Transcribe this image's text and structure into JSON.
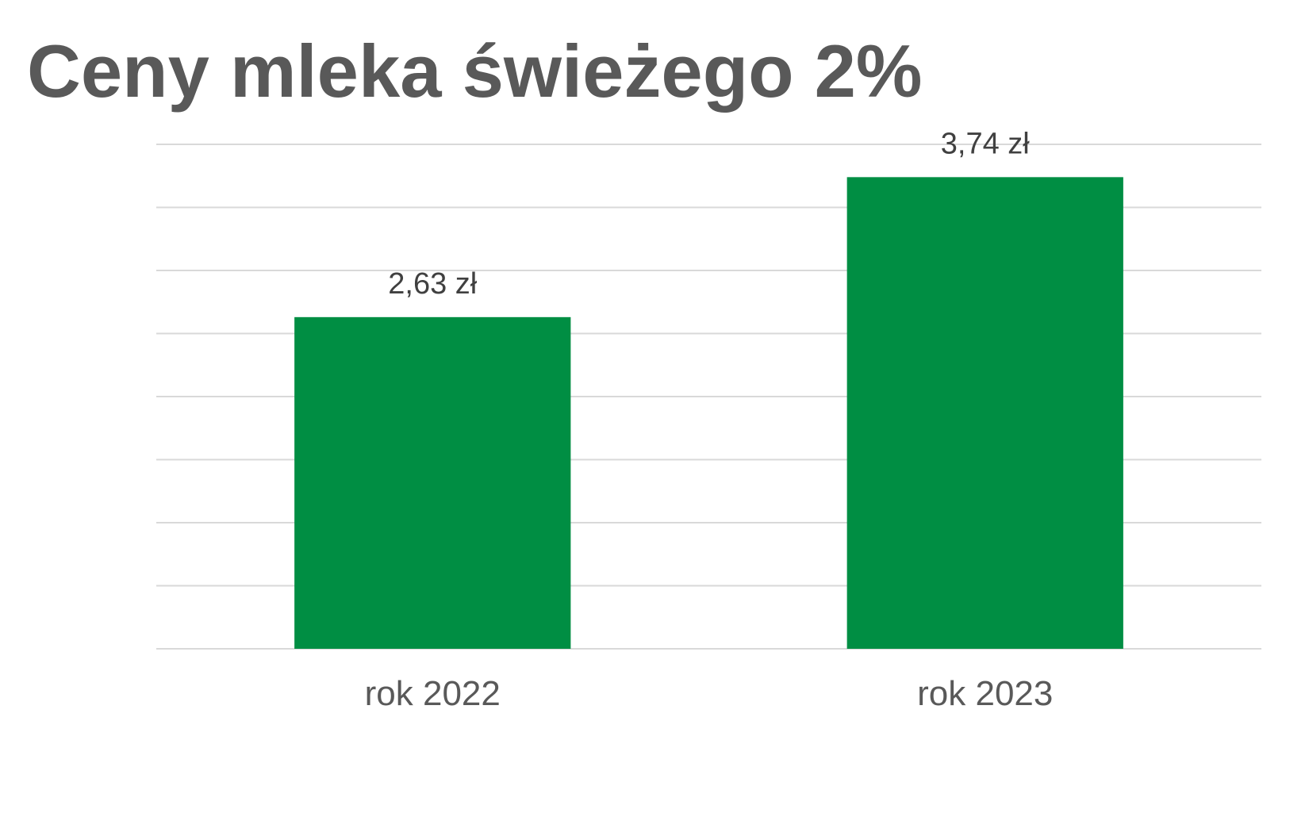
{
  "chart_data": {
    "type": "bar",
    "title": "Ceny mleka świeżego 2%",
    "categories": [
      "rok 2022",
      "rok 2023"
    ],
    "values": [
      2.63,
      3.74
    ],
    "data_labels": [
      "2,63 zł",
      "3,74 zł"
    ],
    "xlabel": "",
    "ylabel": "",
    "ylim": [
      0,
      4.0
    ],
    "y_axis_labels_visible": false,
    "grid": true,
    "grid_step": 0.5,
    "legend": "none",
    "bar_color": "#008e43",
    "grid_color": "#d9d9d9"
  }
}
